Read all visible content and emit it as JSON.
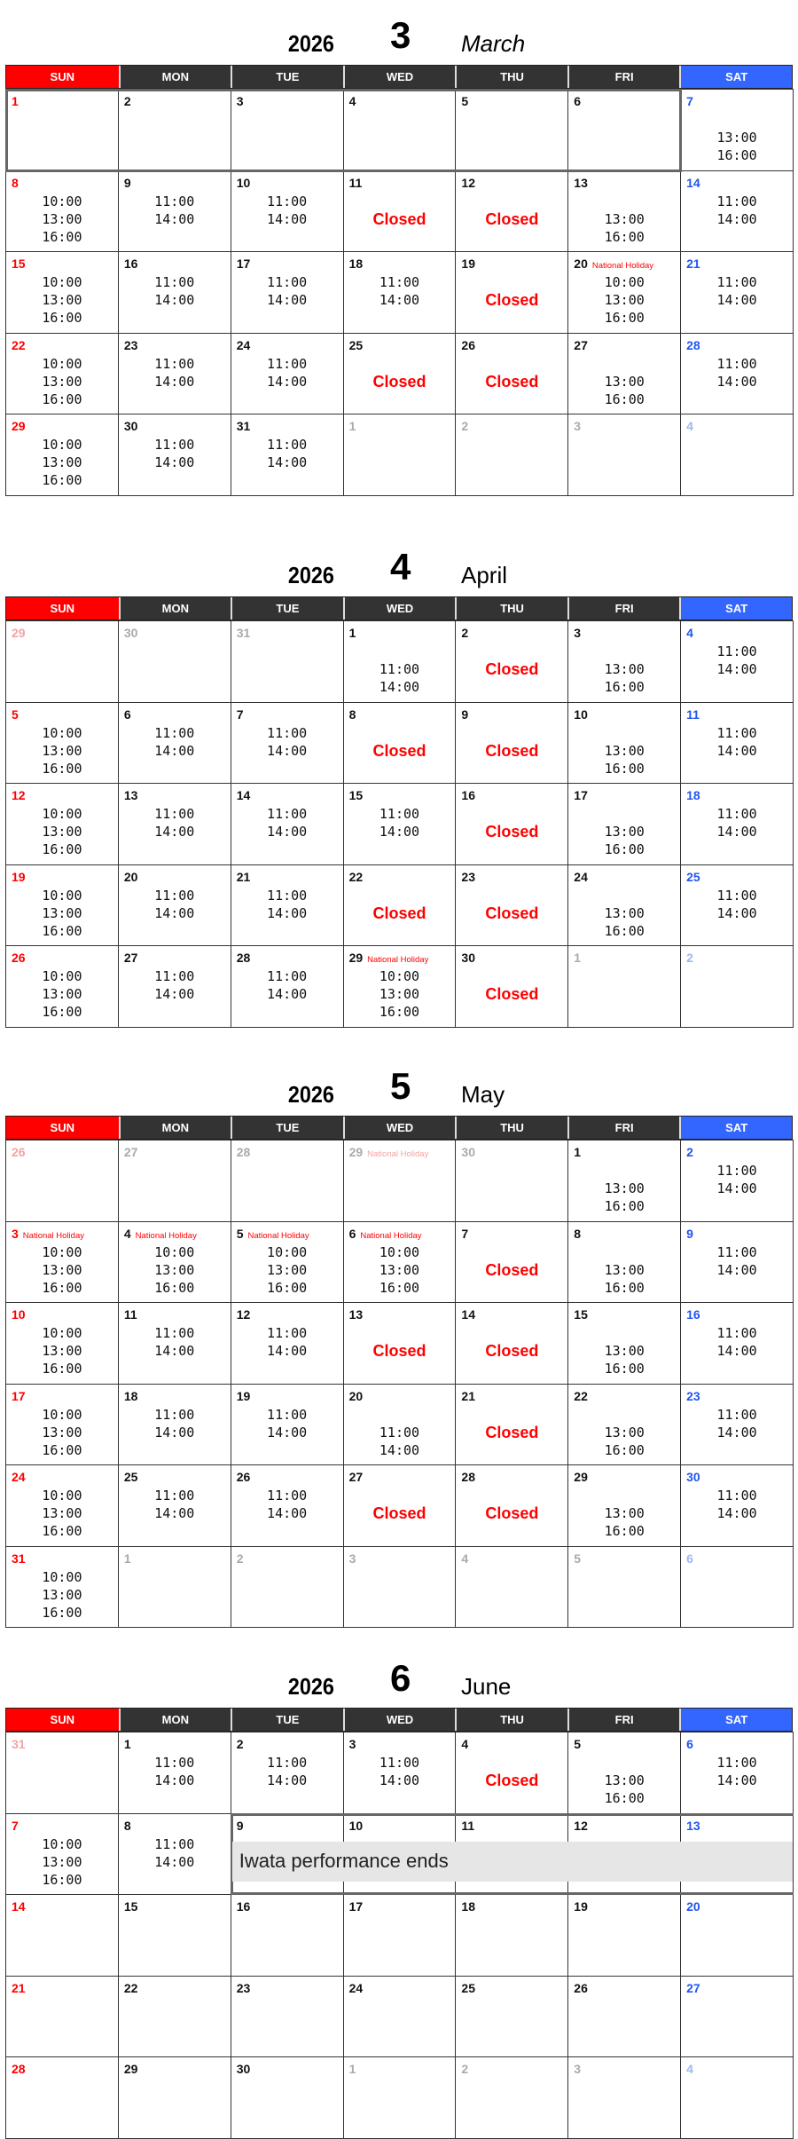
{
  "header_days": [
    "SUN",
    "MON",
    "TUE",
    "WED",
    "THU",
    "FRI",
    "SAT"
  ],
  "colors": {
    "sunday": "#ff0000",
    "saturday": "#3366ff",
    "weekday_header": "#333333",
    "closed": "#ff0000",
    "note_bg": "#e6e6e6"
  },
  "months": [
    {
      "year": "2026",
      "number": "3",
      "name": "March",
      "italic": true,
      "weeks": [
        [
          {
            "d": "1"
          },
          {
            "d": "2"
          },
          {
            "d": "3"
          },
          {
            "d": "4"
          },
          {
            "d": "5"
          },
          {
            "d": "6"
          },
          {
            "d": "7",
            "l": [
              "",
              "13:00",
              "16:00"
            ]
          }
        ],
        [
          {
            "d": "8",
            "l": [
              "10:00",
              "13:00",
              "16:00"
            ]
          },
          {
            "d": "9",
            "l": [
              "11:00",
              "14:00"
            ]
          },
          {
            "d": "10",
            "l": [
              "11:00",
              "14:00"
            ]
          },
          {
            "d": "11",
            "l": [
              "",
              "Closed"
            ]
          },
          {
            "d": "12",
            "l": [
              "",
              "Closed"
            ]
          },
          {
            "d": "13",
            "l": [
              "",
              "13:00",
              "16:00"
            ]
          },
          {
            "d": "14",
            "l": [
              "11:00",
              "14:00"
            ]
          }
        ],
        [
          {
            "d": "15",
            "l": [
              "10:00",
              "13:00",
              "16:00"
            ]
          },
          {
            "d": "16",
            "l": [
              "11:00",
              "14:00"
            ]
          },
          {
            "d": "17",
            "l": [
              "11:00",
              "14:00"
            ]
          },
          {
            "d": "18",
            "l": [
              "11:00",
              "14:00"
            ]
          },
          {
            "d": "19",
            "l": [
              "",
              "Closed"
            ]
          },
          {
            "d": "20",
            "h": "National Holiday",
            "l": [
              "10:00",
              "13:00",
              "16:00"
            ]
          },
          {
            "d": "21",
            "l": [
              "11:00",
              "14:00"
            ]
          }
        ],
        [
          {
            "d": "22",
            "l": [
              "10:00",
              "13:00",
              "16:00"
            ]
          },
          {
            "d": "23",
            "l": [
              "11:00",
              "14:00"
            ]
          },
          {
            "d": "24",
            "l": [
              "11:00",
              "14:00"
            ]
          },
          {
            "d": "25",
            "l": [
              "",
              "Closed"
            ]
          },
          {
            "d": "26",
            "l": [
              "",
              "Closed"
            ]
          },
          {
            "d": "27",
            "l": [
              "",
              "13:00",
              "16:00"
            ]
          },
          {
            "d": "28",
            "l": [
              "11:00",
              "14:00"
            ]
          }
        ],
        [
          {
            "d": "29",
            "l": [
              "10:00",
              "13:00",
              "16:00"
            ]
          },
          {
            "d": "30",
            "l": [
              "11:00",
              "14:00"
            ]
          },
          {
            "d": "31",
            "l": [
              "11:00",
              "14:00"
            ]
          },
          {
            "d": "1",
            "m": true
          },
          {
            "d": "2",
            "m": true
          },
          {
            "d": "3",
            "m": true
          },
          {
            "d": "4",
            "m": true
          }
        ]
      ]
    },
    {
      "year": "2026",
      "number": "4",
      "name": "April",
      "italic": false,
      "weeks": [
        [
          {
            "d": "29",
            "m": true
          },
          {
            "d": "30",
            "m": true
          },
          {
            "d": "31",
            "m": true
          },
          {
            "d": "1",
            "l": [
              "",
              "11:00",
              "14:00"
            ]
          },
          {
            "d": "2",
            "l": [
              "",
              "Closed"
            ]
          },
          {
            "d": "3",
            "l": [
              "",
              "13:00",
              "16:00"
            ]
          },
          {
            "d": "4",
            "l": [
              "11:00",
              "14:00"
            ]
          }
        ],
        [
          {
            "d": "5",
            "l": [
              "10:00",
              "13:00",
              "16:00"
            ]
          },
          {
            "d": "6",
            "l": [
              "11:00",
              "14:00"
            ]
          },
          {
            "d": "7",
            "l": [
              "11:00",
              "14:00"
            ]
          },
          {
            "d": "8",
            "l": [
              "",
              "Closed"
            ]
          },
          {
            "d": "9",
            "l": [
              "",
              "Closed"
            ]
          },
          {
            "d": "10",
            "l": [
              "",
              "13:00",
              "16:00"
            ]
          },
          {
            "d": "11",
            "l": [
              "11:00",
              "14:00"
            ]
          }
        ],
        [
          {
            "d": "12",
            "l": [
              "10:00",
              "13:00",
              "16:00"
            ]
          },
          {
            "d": "13",
            "l": [
              "11:00",
              "14:00"
            ]
          },
          {
            "d": "14",
            "l": [
              "11:00",
              "14:00"
            ]
          },
          {
            "d": "15",
            "l": [
              "11:00",
              "14:00"
            ]
          },
          {
            "d": "16",
            "l": [
              "",
              "Closed"
            ]
          },
          {
            "d": "17",
            "l": [
              "",
              "13:00",
              "16:00"
            ]
          },
          {
            "d": "18",
            "l": [
              "11:00",
              "14:00"
            ]
          }
        ],
        [
          {
            "d": "19",
            "l": [
              "10:00",
              "13:00",
              "16:00"
            ]
          },
          {
            "d": "20",
            "l": [
              "11:00",
              "14:00"
            ]
          },
          {
            "d": "21",
            "l": [
              "11:00",
              "14:00"
            ]
          },
          {
            "d": "22",
            "l": [
              "",
              "Closed"
            ]
          },
          {
            "d": "23",
            "l": [
              "",
              "Closed"
            ]
          },
          {
            "d": "24",
            "l": [
              "",
              "13:00",
              "16:00"
            ]
          },
          {
            "d": "25",
            "l": [
              "11:00",
              "14:00"
            ]
          }
        ],
        [
          {
            "d": "26",
            "l": [
              "10:00",
              "13:00",
              "16:00"
            ]
          },
          {
            "d": "27",
            "l": [
              "11:00",
              "14:00"
            ]
          },
          {
            "d": "28",
            "l": [
              "11:00",
              "14:00"
            ]
          },
          {
            "d": "29",
            "h": "National Holiday",
            "l": [
              "10:00",
              "13:00",
              "16:00"
            ]
          },
          {
            "d": "30",
            "l": [
              "",
              "Closed"
            ]
          },
          {
            "d": "1",
            "m": true
          },
          {
            "d": "2",
            "m": true
          }
        ]
      ]
    },
    {
      "year": "2026",
      "number": "5",
      "name": "May",
      "italic": false,
      "weeks": [
        [
          {
            "d": "26",
            "m": true
          },
          {
            "d": "27",
            "m": true
          },
          {
            "d": "28",
            "m": true
          },
          {
            "d": "29",
            "m": true,
            "h": "National Holiday"
          },
          {
            "d": "30",
            "m": true
          },
          {
            "d": "1",
            "l": [
              "",
              "13:00",
              "16:00"
            ]
          },
          {
            "d": "2",
            "l": [
              "11:00",
              "14:00"
            ]
          }
        ],
        [
          {
            "d": "3",
            "h": "National Holiday",
            "l": [
              "10:00",
              "13:00",
              "16:00"
            ]
          },
          {
            "d": "4",
            "h": "National Holiday",
            "l": [
              "10:00",
              "13:00",
              "16:00"
            ]
          },
          {
            "d": "5",
            "h": "National Holiday",
            "l": [
              "10:00",
              "13:00",
              "16:00"
            ]
          },
          {
            "d": "6",
            "h": "National Holiday",
            "l": [
              "10:00",
              "13:00",
              "16:00"
            ]
          },
          {
            "d": "7",
            "l": [
              "",
              "Closed"
            ]
          },
          {
            "d": "8",
            "l": [
              "",
              "13:00",
              "16:00"
            ]
          },
          {
            "d": "9",
            "l": [
              "11:00",
              "14:00"
            ]
          }
        ],
        [
          {
            "d": "10",
            "l": [
              "10:00",
              "13:00",
              "16:00"
            ]
          },
          {
            "d": "11",
            "l": [
              "11:00",
              "14:00"
            ]
          },
          {
            "d": "12",
            "l": [
              "11:00",
              "14:00"
            ]
          },
          {
            "d": "13",
            "l": [
              "",
              "Closed"
            ]
          },
          {
            "d": "14",
            "l": [
              "",
              "Closed"
            ]
          },
          {
            "d": "15",
            "l": [
              "",
              "13:00",
              "16:00"
            ]
          },
          {
            "d": "16",
            "l": [
              "11:00",
              "14:00"
            ]
          }
        ],
        [
          {
            "d": "17",
            "l": [
              "10:00",
              "13:00",
              "16:00"
            ]
          },
          {
            "d": "18",
            "l": [
              "11:00",
              "14:00"
            ]
          },
          {
            "d": "19",
            "l": [
              "11:00",
              "14:00"
            ]
          },
          {
            "d": "20",
            "l": [
              "",
              "11:00",
              "14:00"
            ]
          },
          {
            "d": "21",
            "l": [
              "",
              "Closed"
            ]
          },
          {
            "d": "22",
            "l": [
              "",
              "13:00",
              "16:00"
            ]
          },
          {
            "d": "23",
            "l": [
              "11:00",
              "14:00"
            ]
          }
        ],
        [
          {
            "d": "24",
            "l": [
              "10:00",
              "13:00",
              "16:00"
            ]
          },
          {
            "d": "25",
            "l": [
              "11:00",
              "14:00"
            ]
          },
          {
            "d": "26",
            "l": [
              "11:00",
              "14:00"
            ]
          },
          {
            "d": "27",
            "l": [
              "",
              "Closed"
            ]
          },
          {
            "d": "28",
            "l": [
              "",
              "Closed"
            ]
          },
          {
            "d": "29",
            "l": [
              "",
              "13:00",
              "16:00"
            ]
          },
          {
            "d": "30",
            "l": [
              "11:00",
              "14:00"
            ]
          }
        ],
        [
          {
            "d": "31",
            "l": [
              "10:00",
              "13:00",
              "16:00"
            ]
          },
          {
            "d": "1",
            "m": true
          },
          {
            "d": "2",
            "m": true
          },
          {
            "d": "3",
            "m": true
          },
          {
            "d": "4",
            "m": true
          },
          {
            "d": "5",
            "m": true
          },
          {
            "d": "6",
            "m": true
          }
        ]
      ]
    },
    {
      "year": "2026",
      "number": "6",
      "name": "June",
      "italic": false,
      "note": "Iwata performance ends",
      "weeks": [
        [
          {
            "d": "31",
            "m": true
          },
          {
            "d": "1",
            "l": [
              "11:00",
              "14:00"
            ]
          },
          {
            "d": "2",
            "l": [
              "11:00",
              "14:00"
            ]
          },
          {
            "d": "3",
            "l": [
              "11:00",
              "14:00"
            ]
          },
          {
            "d": "4",
            "l": [
              "",
              "Closed"
            ]
          },
          {
            "d": "5",
            "l": [
              "",
              "13:00",
              "16:00"
            ]
          },
          {
            "d": "6",
            "l": [
              "11:00",
              "14:00"
            ]
          }
        ],
        [
          {
            "d": "7",
            "l": [
              "10:00",
              "13:00",
              "16:00"
            ]
          },
          {
            "d": "8",
            "l": [
              "11:00",
              "14:00"
            ]
          },
          {
            "d": "9"
          },
          {
            "d": "10"
          },
          {
            "d": "11"
          },
          {
            "d": "12"
          },
          {
            "d": "13"
          }
        ],
        [
          {
            "d": "14"
          },
          {
            "d": "15"
          },
          {
            "d": "16"
          },
          {
            "d": "17"
          },
          {
            "d": "18"
          },
          {
            "d": "19"
          },
          {
            "d": "20"
          }
        ],
        [
          {
            "d": "21"
          },
          {
            "d": "22"
          },
          {
            "d": "23"
          },
          {
            "d": "24"
          },
          {
            "d": "25"
          },
          {
            "d": "26"
          },
          {
            "d": "27"
          }
        ],
        [
          {
            "d": "28"
          },
          {
            "d": "29"
          },
          {
            "d": "30"
          },
          {
            "d": "1",
            "m": true
          },
          {
            "d": "2",
            "m": true
          },
          {
            "d": "3",
            "m": true
          },
          {
            "d": "4",
            "m": true
          }
        ]
      ]
    }
  ]
}
